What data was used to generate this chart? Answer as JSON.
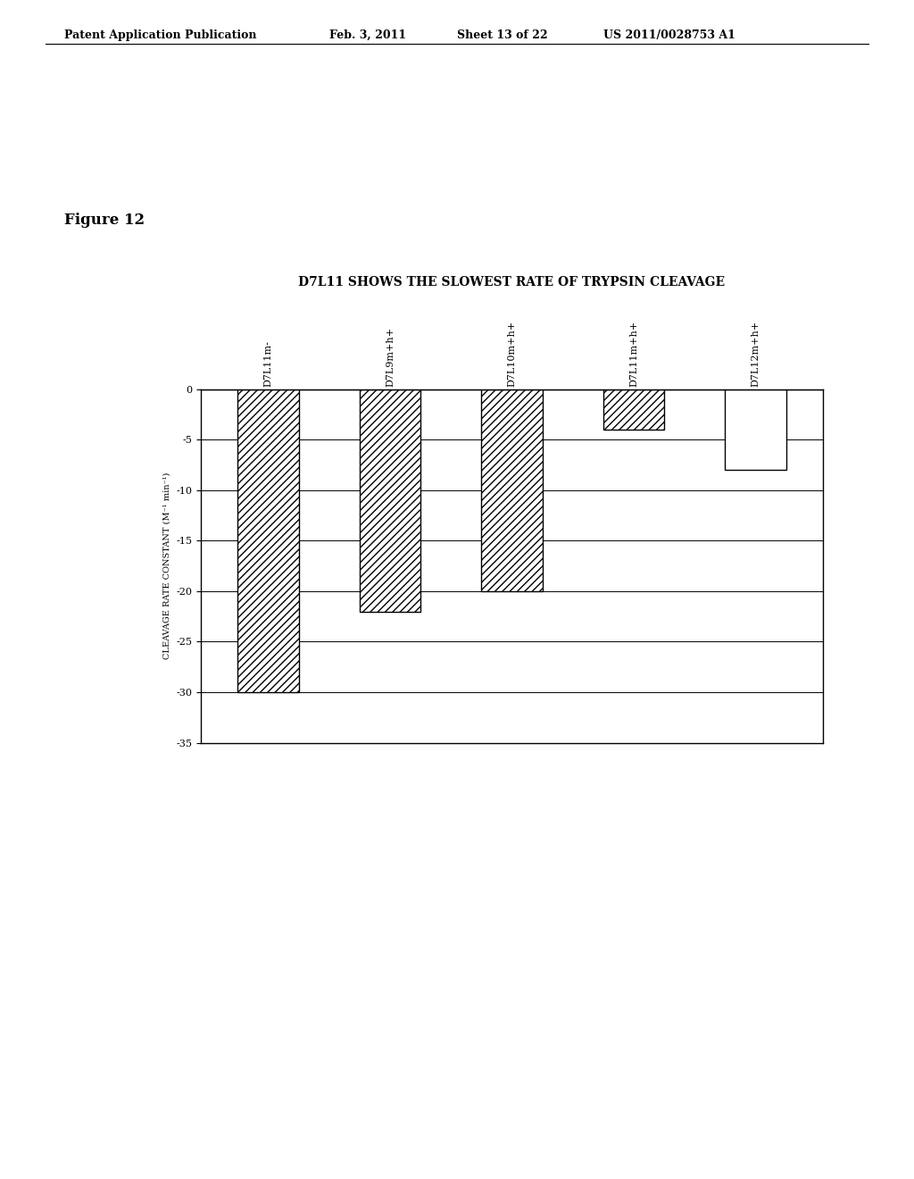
{
  "title": "D7L11 SHOWS THE SLOWEST RATE OF TRYPSIN CLEAVAGE",
  "categories": [
    "D7L11m-",
    "D7L9m+h+",
    "D7L10m+h+",
    "D7L11m+h+",
    "D7L12m+h+"
  ],
  "values": [
    -30,
    -22,
    -20,
    -4,
    -8
  ],
  "hatched": [
    true,
    true,
    true,
    true,
    false
  ],
  "ylabel": "CLEAVAGE RATE CONSTANT (M⁻¹ min⁻¹)",
  "ylim": [
    -35,
    0
  ],
  "yticks": [
    0,
    -5,
    -10,
    -15,
    -20,
    -25,
    -30,
    -35
  ],
  "header_text": "Patent Application Publication",
  "header_date": "Feb. 3, 2011",
  "header_sheet": "Sheet 13 of 22",
  "header_patent": "US 2011/0028753 A1",
  "figure_label": "Figure 12",
  "background_color": "#ffffff",
  "bar_edge_color": "#000000",
  "bar_face_color": "#ffffff",
  "hatch_pattern": "////",
  "title_fontsize": 10,
  "axis_fontsize": 8,
  "tick_fontsize": 8,
  "header_fontsize": 9,
  "figure_label_fontsize": 12,
  "ylabel_fontsize": 7
}
